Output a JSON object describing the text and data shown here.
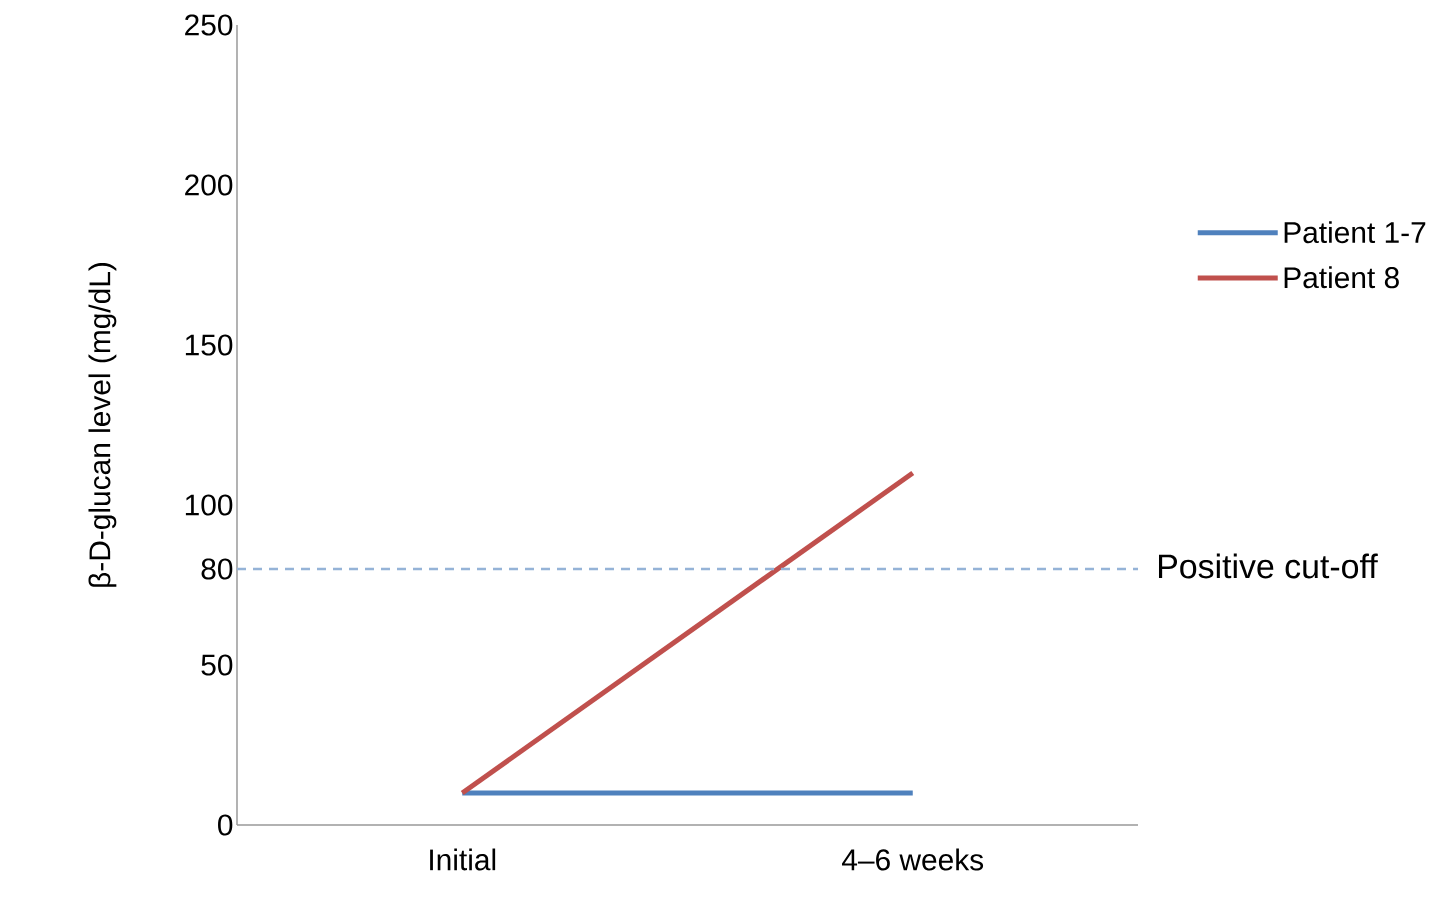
{
  "chart_data": {
    "type": "line",
    "ylabel": "β-D-glucan level (mg/dL)",
    "categories": [
      "Initial",
      "4–6 weeks"
    ],
    "series": [
      {
        "name": "Patient 1-7",
        "color": "#4f81bd",
        "values": [
          10,
          10
        ]
      },
      {
        "name": "Patient 8",
        "color": "#c0504d",
        "values": [
          10,
          110
        ]
      }
    ],
    "ylim": [
      0,
      250
    ],
    "yticks": [
      0,
      50,
      80,
      100,
      150,
      200,
      250
    ],
    "ref_lines": [
      {
        "axis": "y",
        "value": 80,
        "label": "Positive cut-off",
        "color": "#95b3d7",
        "line_style": "dashed"
      }
    ],
    "grid": false,
    "legend": "right",
    "marker": "none",
    "line_style": "solid"
  }
}
